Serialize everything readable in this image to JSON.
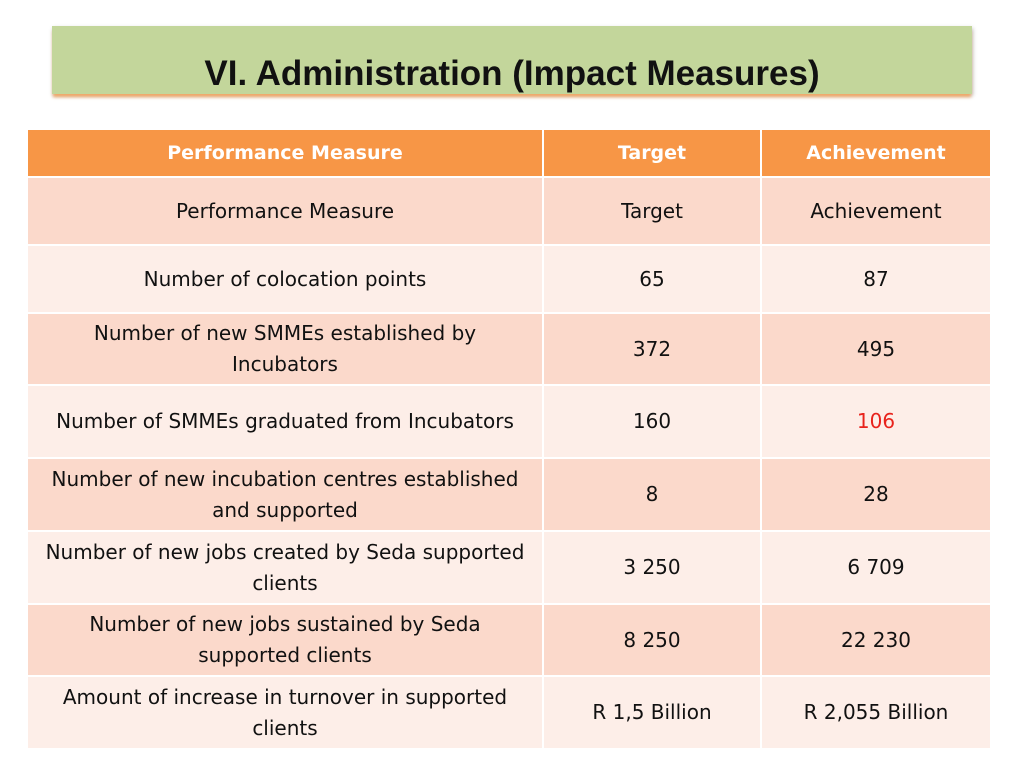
{
  "title": "VI. Administration (Impact Measures)",
  "table": {
    "headers": [
      "Performance Measure",
      "Target",
      "Achievement"
    ],
    "rows": [
      {
        "measure": "Performance Measure",
        "target": "Target",
        "achievement": "Achievement"
      },
      {
        "measure": "Number of colocation points",
        "target": "65",
        "achievement": "87"
      },
      {
        "measure": "Number of new SMMEs established by Incubators",
        "target": "372",
        "achievement": "495"
      },
      {
        "measure": "Number of SMMEs graduated from Incubators",
        "target": "160",
        "achievement": "106"
      },
      {
        "measure": "Number of new incubation centres established and supported",
        "target": "8",
        "achievement": "28"
      },
      {
        "measure": "Number of new jobs created by Seda supported clients",
        "target": "3 250",
        "achievement": "6 709"
      },
      {
        "measure": "Number of new jobs sustained by Seda supported clients",
        "target": "8 250",
        "achievement": "22 230"
      },
      {
        "measure": "Amount of increase in turnover in supported clients",
        "target": "R 1,5 Billion",
        "achievement": "R 2,055 Billion"
      }
    ]
  },
  "colors": {
    "header_bg": "#f79646",
    "row_dark": "#fbd9cb",
    "row_light": "#fdeee8",
    "banner_bg": "#c3d69b",
    "below_target": "#e8231c"
  }
}
